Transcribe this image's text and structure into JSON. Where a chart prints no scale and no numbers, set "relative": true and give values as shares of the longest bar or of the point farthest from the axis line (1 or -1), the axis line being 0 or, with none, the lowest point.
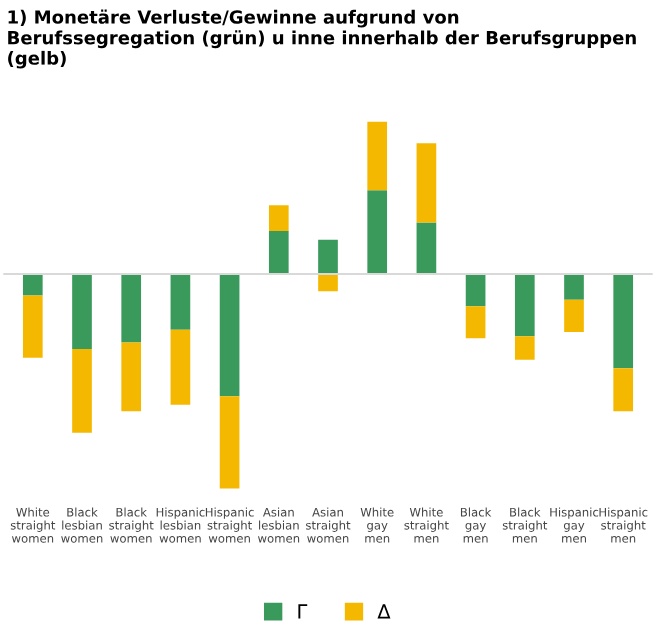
{
  "chart_data": {
    "type": "bar",
    "title": "1) Monetäre Verluste/Gewinne aufgrund von Berufssegregation (grün) u inne innerhalb der Berufsgruppen (gelb)",
    "categories": [
      "White straight women",
      "Black lesbian women",
      "Black straight women",
      "Hispanic lesbian women",
      "Hispanic straight women",
      "Asian lesbian women",
      "Asian straight women",
      "White gay men",
      "White straight men",
      "Black gay men",
      "Black straight men",
      "Hispanic gay men",
      "Hispanic straight men"
    ],
    "stacked": true,
    "relative": true,
    "legend": "bottom",
    "series": [
      {
        "name": "Γ",
        "color": "#3a9a5c",
        "values": [
          -0.1,
          -0.35,
          -0.32,
          -0.26,
          -0.57,
          0.2,
          0.16,
          0.39,
          0.24,
          -0.15,
          -0.29,
          -0.12,
          -0.44
        ]
      },
      {
        "name": "Δ",
        "color": "#f5b800",
        "values": [
          -0.29,
          -0.39,
          -0.32,
          -0.35,
          -0.43,
          0.12,
          -0.08,
          0.32,
          0.37,
          -0.15,
          -0.11,
          -0.15,
          -0.2
        ]
      }
    ]
  }
}
